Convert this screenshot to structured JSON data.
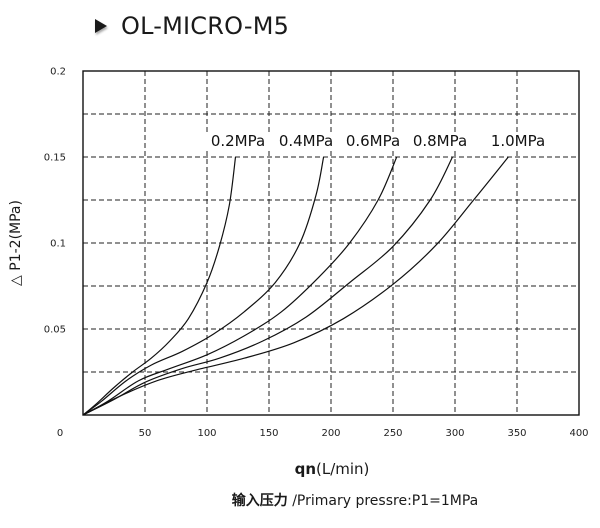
{
  "header": {
    "title": "OL-MICRO-M5"
  },
  "chart_data": {
    "type": "line",
    "xlabel_main": "qn",
    "xlabel_unit": "(L/min)",
    "ylabel": "△ P1-2(MPa)",
    "caption_cn": "输入压力",
    "caption_en": " /Primary pressre:P1=1MPa",
    "xlim": [
      0,
      400
    ],
    "ylim": [
      0,
      0.2
    ],
    "x_ticks": [
      0,
      50,
      100,
      150,
      200,
      250,
      300,
      350,
      400
    ],
    "x_tick_labels": [
      "0",
      "50",
      "100",
      "150",
      "200",
      "250",
      "300",
      "350",
      "400"
    ],
    "y_ticks": [
      0.05,
      0.1,
      0.15,
      0.2
    ],
    "y_tick_labels": [
      "0.05",
      "0.1",
      "0.15",
      "0.2"
    ],
    "grid": "dashed",
    "series": [
      {
        "name": "0.2MPa",
        "x": [
          0,
          10,
          25,
          40,
          55,
          70,
          85,
          100,
          110,
          118,
          123
        ],
        "y": [
          0,
          0.006,
          0.016,
          0.025,
          0.033,
          0.043,
          0.056,
          0.077,
          0.098,
          0.122,
          0.15
        ]
      },
      {
        "name": "0.4MPa",
        "x": [
          0,
          15,
          35,
          55,
          80,
          105,
          130,
          155,
          175,
          188,
          194
        ],
        "y": [
          0,
          0.008,
          0.02,
          0.029,
          0.037,
          0.047,
          0.06,
          0.077,
          0.1,
          0.128,
          0.15
        ]
      },
      {
        "name": "0.6MPa",
        "x": [
          0,
          20,
          45,
          70,
          100,
          130,
          160,
          190,
          215,
          238,
          253
        ],
        "y": [
          0,
          0.008,
          0.02,
          0.027,
          0.035,
          0.046,
          0.06,
          0.08,
          0.1,
          0.125,
          0.15
        ]
      },
      {
        "name": "0.8MPa",
        "x": [
          0,
          25,
          50,
          80,
          110,
          145,
          180,
          215,
          250,
          280,
          298
        ],
        "y": [
          0,
          0.009,
          0.019,
          0.027,
          0.033,
          0.043,
          0.057,
          0.077,
          0.098,
          0.125,
          0.15
        ]
      },
      {
        "name": "1.0MPa",
        "x": [
          0,
          30,
          60,
          90,
          130,
          170,
          210,
          250,
          285,
          315,
          343
        ],
        "y": [
          0,
          0.011,
          0.02,
          0.026,
          0.033,
          0.042,
          0.056,
          0.076,
          0.099,
          0.125,
          0.15
        ]
      }
    ]
  }
}
